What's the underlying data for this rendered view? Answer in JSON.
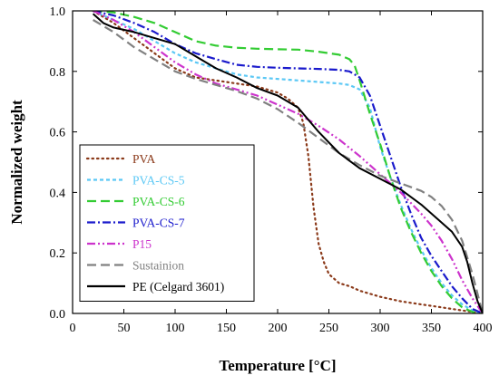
{
  "chart_data": {
    "type": "line",
    "title": "",
    "xlabel": "Temperature [°C]",
    "ylabel": "Normalized weight",
    "xlim": [
      0,
      400
    ],
    "ylim": [
      0.0,
      1.0
    ],
    "xticks": [
      0,
      50,
      100,
      150,
      200,
      250,
      300,
      350,
      400
    ],
    "yticks": [
      0.0,
      0.2,
      0.4,
      0.6,
      0.8,
      1.0
    ],
    "xtick_labels": [
      "0",
      "50",
      "100",
      "150",
      "200",
      "250",
      "300",
      "350",
      "400"
    ],
    "ytick_labels": [
      "0.0",
      "0.2",
      "0.4",
      "0.6",
      "0.8",
      "1.0"
    ],
    "grid": false,
    "legend_position": "lower-left",
    "series": [
      {
        "name": "PVA",
        "color": "#8b3a1a",
        "dash": "dotted",
        "x": [
          20,
          40,
          60,
          80,
          100,
          120,
          140,
          160,
          180,
          200,
          210,
          220,
          225,
          230,
          235,
          240,
          245,
          250,
          260,
          270,
          280,
          300,
          320,
          340,
          360,
          380,
          400
        ],
        "y": [
          1.0,
          0.96,
          0.91,
          0.86,
          0.81,
          0.78,
          0.77,
          0.76,
          0.75,
          0.73,
          0.71,
          0.68,
          0.63,
          0.52,
          0.35,
          0.23,
          0.17,
          0.13,
          0.1,
          0.09,
          0.075,
          0.055,
          0.04,
          0.03,
          0.02,
          0.01,
          0.0
        ]
      },
      {
        "name": "PVA-CS-5",
        "color": "#5bc8f5",
        "dash": "short-dash",
        "x": [
          20,
          40,
          60,
          80,
          100,
          120,
          140,
          160,
          180,
          200,
          220,
          240,
          260,
          270,
          280,
          290,
          300,
          310,
          320,
          330,
          340,
          350,
          360,
          370,
          380,
          390,
          400
        ],
        "y": [
          1.0,
          0.97,
          0.94,
          0.9,
          0.86,
          0.83,
          0.81,
          0.79,
          0.78,
          0.775,
          0.77,
          0.765,
          0.76,
          0.755,
          0.74,
          0.68,
          0.55,
          0.45,
          0.36,
          0.28,
          0.21,
          0.15,
          0.1,
          0.06,
          0.03,
          0.01,
          0.0
        ]
      },
      {
        "name": "PVA-CS-6",
        "color": "#33cc33",
        "dash": "long-dash",
        "x": [
          20,
          40,
          60,
          80,
          100,
          120,
          140,
          160,
          180,
          200,
          220,
          240,
          260,
          270,
          275,
          280,
          290,
          300,
          310,
          320,
          330,
          340,
          350,
          360,
          370,
          380,
          390,
          400
        ],
        "y": [
          1.0,
          0.995,
          0.98,
          0.96,
          0.93,
          0.9,
          0.885,
          0.878,
          0.875,
          0.873,
          0.872,
          0.865,
          0.855,
          0.84,
          0.82,
          0.77,
          0.66,
          0.56,
          0.45,
          0.35,
          0.27,
          0.2,
          0.14,
          0.09,
          0.05,
          0.02,
          0.005,
          0.0
        ]
      },
      {
        "name": "PVA-CS-7",
        "color": "#1a1acc",
        "dash": "dash-dot",
        "x": [
          20,
          40,
          60,
          80,
          100,
          120,
          140,
          160,
          180,
          200,
          220,
          240,
          260,
          270,
          280,
          290,
          300,
          310,
          320,
          330,
          340,
          350,
          360,
          370,
          380,
          390,
          400
        ],
        "y": [
          1.0,
          0.985,
          0.96,
          0.93,
          0.89,
          0.86,
          0.84,
          0.822,
          0.815,
          0.812,
          0.81,
          0.808,
          0.805,
          0.8,
          0.78,
          0.72,
          0.62,
          0.52,
          0.42,
          0.33,
          0.25,
          0.19,
          0.14,
          0.09,
          0.05,
          0.015,
          0.0
        ]
      },
      {
        "name": "P15",
        "color": "#cc33cc",
        "dash": "dash-dot-dot",
        "x": [
          20,
          40,
          60,
          80,
          100,
          120,
          140,
          160,
          180,
          200,
          220,
          240,
          260,
          280,
          300,
          320,
          340,
          350,
          360,
          370,
          380,
          390,
          400
        ],
        "y": [
          1.0,
          0.97,
          0.93,
          0.88,
          0.83,
          0.79,
          0.76,
          0.74,
          0.72,
          0.69,
          0.66,
          0.62,
          0.575,
          0.52,
          0.46,
          0.4,
          0.33,
          0.29,
          0.24,
          0.18,
          0.11,
          0.05,
          0.0
        ]
      },
      {
        "name": "Sustainion",
        "color": "#808080",
        "dash": "long-dash",
        "x": [
          20,
          40,
          60,
          80,
          100,
          120,
          140,
          160,
          180,
          200,
          220,
          240,
          260,
          280,
          300,
          320,
          340,
          350,
          360,
          370,
          380,
          390,
          400
        ],
        "y": [
          0.97,
          0.93,
          0.88,
          0.84,
          0.8,
          0.775,
          0.755,
          0.735,
          0.71,
          0.675,
          0.63,
          0.58,
          0.53,
          0.49,
          0.455,
          0.43,
          0.405,
          0.385,
          0.355,
          0.31,
          0.24,
          0.13,
          0.0
        ]
      },
      {
        "name": "PE (Celgard 3601)",
        "color": "#000000",
        "dash": "solid",
        "x": [
          20,
          30,
          40,
          60,
          80,
          100,
          120,
          140,
          160,
          180,
          200,
          220,
          240,
          260,
          280,
          300,
          320,
          340,
          360,
          370,
          380,
          385,
          390,
          395,
          400
        ],
        "y": [
          0.99,
          0.96,
          0.945,
          0.93,
          0.91,
          0.89,
          0.85,
          0.81,
          0.78,
          0.745,
          0.72,
          0.68,
          0.6,
          0.53,
          0.48,
          0.445,
          0.41,
          0.36,
          0.3,
          0.27,
          0.22,
          0.17,
          0.1,
          0.04,
          0.0
        ]
      }
    ]
  }
}
